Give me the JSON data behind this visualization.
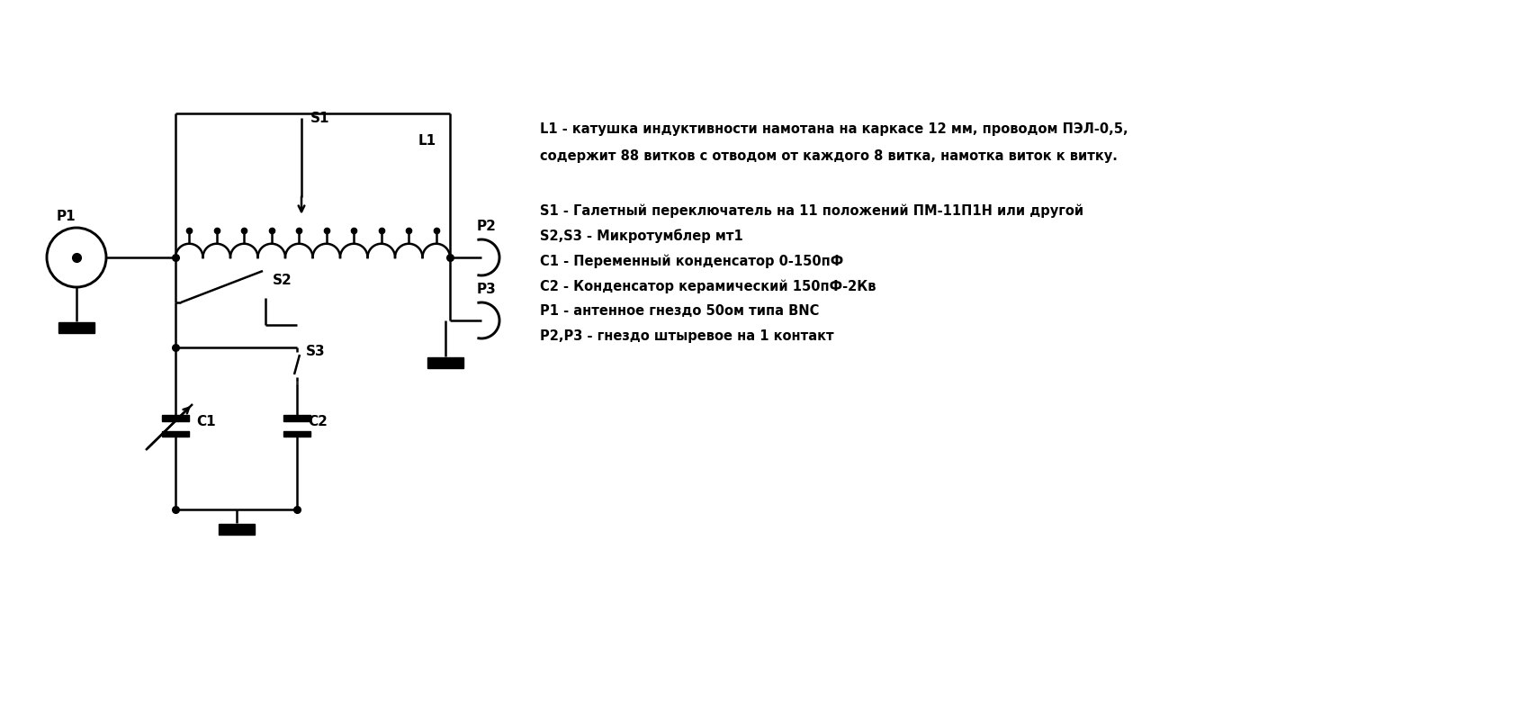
{
  "bg_color": "#ffffff",
  "line_color": "#000000",
  "lw": 1.8,
  "text_lines": [
    [
      "L1 - катушка индуктивности намотана на каркасе 12 мм, проводом ПЭЛ-0,5,",
      6.0,
      6.55
    ],
    [
      "содержит 88 витков с отводом от каждого 8 витка, намотка виток к витку.",
      6.0,
      6.25
    ],
    [
      "S1 - Галетный переключатель на 11 положений ПМ-11П1Н или другой",
      6.0,
      5.65
    ],
    [
      "S2,S3 - Микротумблер мт1",
      6.0,
      5.37
    ],
    [
      "C1 - Переменный конденсатор 0-150пФ",
      6.0,
      5.09
    ],
    [
      "C2 - Конденсатор керамический 150пФ-2Кв",
      6.0,
      4.81
    ],
    [
      "Р1 - антенное гнездо 50ом типа BNC",
      6.0,
      4.53
    ],
    [
      "Р2,Р3 - гнездо штыревое на 1 контакт",
      6.0,
      4.25
    ]
  ]
}
